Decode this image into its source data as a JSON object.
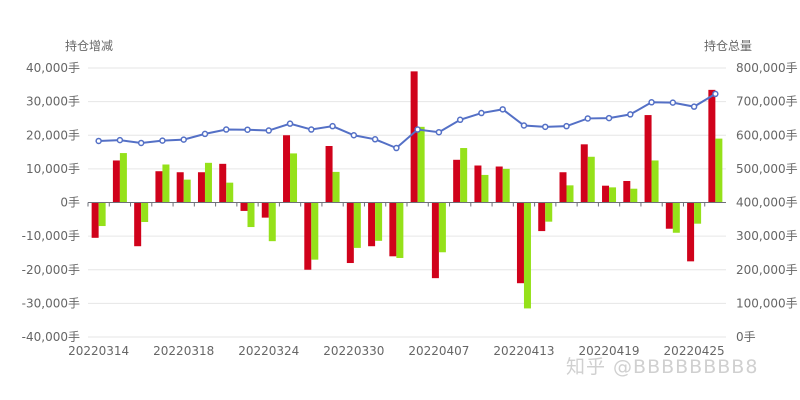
{
  "watermark": "知乎 @BBBBBBBB8",
  "chart_data": {
    "type": "bar+line",
    "left_axis": {
      "title": "持仓增减",
      "ylim": [
        -40000,
        40000
      ],
      "ticks": [
        "40,000手",
        "30,000手",
        "20,000手",
        "10,000手",
        "0手",
        "-10,000手",
        "-20,000手",
        "-30,000手",
        "-40,000手"
      ]
    },
    "right_axis": {
      "title": "持仓总量",
      "ylim": [
        0,
        800000
      ],
      "ticks": [
        "800,000手",
        "700,000手",
        "600,000手",
        "500,000手",
        "400,000手",
        "300,000手",
        "200,000手",
        "100,000手",
        "0手"
      ]
    },
    "x_tick_labels": [
      "20220314",
      "20220318",
      "20220324",
      "20220330",
      "20220407",
      "20220413",
      "20220419",
      "20220425"
    ],
    "x_tick_every": 4,
    "grid": true,
    "colors": {
      "series1": "#d0021b",
      "series2": "#95e11a",
      "line": "#5470c6"
    },
    "series1_values": [
      -10500,
      12500,
      -13000,
      9300,
      9000,
      9000,
      11500,
      -2500,
      -4500,
      20000,
      -20000,
      16800,
      -18000,
      -13000,
      -16000,
      39000,
      -22500,
      12700,
      11000,
      10700,
      -24000,
      -8500,
      9000,
      17300,
      5000,
      6400,
      26000,
      -7800,
      -17500,
      33500
    ],
    "series2_values": [
      -7000,
      14700,
      -5800,
      11300,
      6800,
      11800,
      5900,
      -7300,
      -11500,
      14600,
      -17000,
      9100,
      -13500,
      -11400,
      -16500,
      22500,
      -14800,
      16200,
      8200,
      10000,
      -31500,
      -5700,
      5100,
      13600,
      4500,
      4100,
      12500,
      -9000,
      -6300,
      19000
    ],
    "line_values": [
      583000,
      585500,
      577000,
      584000,
      587000,
      604000,
      617000,
      616500,
      614000,
      634500,
      617000,
      627000,
      600000,
      588000,
      562000,
      617000,
      609000,
      646000,
      666000,
      677000,
      629000,
      625000,
      627000,
      650000,
      651000,
      662000,
      698000,
      697000,
      685000,
      723000
    ]
  }
}
